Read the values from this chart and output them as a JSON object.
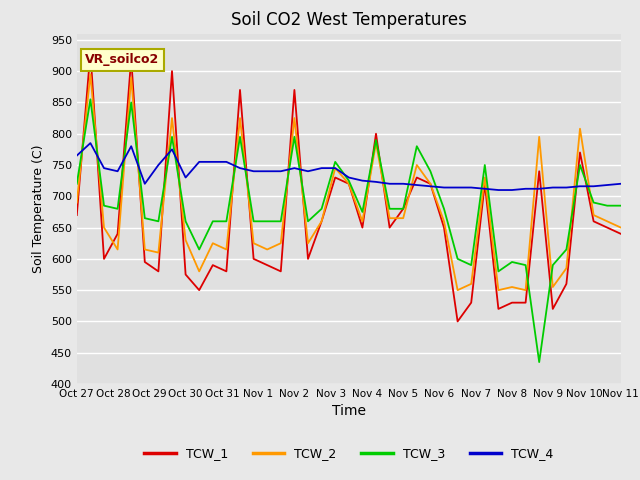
{
  "title": "Soil CO2 West Temperatures",
  "xlabel": "Time",
  "ylabel": "Soil Temperature (C)",
  "ylim": [
    400,
    960
  ],
  "yticks": [
    400,
    450,
    500,
    550,
    600,
    650,
    700,
    750,
    800,
    850,
    900,
    950
  ],
  "fig_bg": "#e8e8e8",
  "plot_bg": "#e0e0e0",
  "grid_color": "#ffffff",
  "legend_label": "VR_soilco2",
  "series_colors": {
    "TCW_1": "#dd0000",
    "TCW_2": "#ff9900",
    "TCW_3": "#00cc00",
    "TCW_4": "#0000cc"
  },
  "xtick_labels": [
    "Oct 27",
    "Oct 28",
    "Oct 29",
    "Oct 30",
    "Oct 31",
    "Nov 1",
    "Nov 2",
    "Nov 3",
    "Nov 4",
    "Nov 5",
    "Nov 6",
    "Nov 7",
    "Nov 8",
    "Nov 9",
    "Nov 10",
    "Nov 11"
  ],
  "TCW_1": [
    670,
    930,
    600,
    640,
    920,
    595,
    580,
    900,
    575,
    550,
    590,
    580,
    870,
    600,
    590,
    580,
    870,
    600,
    660,
    730,
    720,
    650,
    800,
    650,
    680,
    730,
    720,
    650,
    500,
    530,
    720,
    520,
    530,
    530,
    740,
    520,
    560,
    770,
    660,
    650,
    640
  ],
  "TCW_2": [
    690,
    895,
    650,
    615,
    890,
    615,
    610,
    825,
    630,
    580,
    625,
    615,
    825,
    625,
    615,
    625,
    825,
    625,
    660,
    745,
    720,
    660,
    785,
    665,
    665,
    750,
    720,
    660,
    550,
    560,
    730,
    550,
    555,
    550,
    795,
    555,
    585,
    808,
    670,
    660,
    650
  ],
  "TCW_3": [
    720,
    855,
    685,
    680,
    850,
    665,
    660,
    795,
    660,
    615,
    660,
    660,
    795,
    660,
    660,
    660,
    795,
    660,
    680,
    755,
    725,
    675,
    790,
    680,
    680,
    780,
    740,
    680,
    600,
    590,
    750,
    580,
    595,
    590,
    435,
    590,
    615,
    750,
    690,
    685,
    685
  ],
  "TCW_4": [
    765,
    785,
    745,
    740,
    780,
    720,
    750,
    775,
    730,
    755,
    755,
    755,
    745,
    740,
    740,
    740,
    745,
    740,
    745,
    745,
    730,
    725,
    723,
    720,
    720,
    718,
    716,
    714,
    714,
    714,
    712,
    710,
    710,
    712,
    712,
    714,
    714,
    716,
    716,
    718,
    720
  ]
}
